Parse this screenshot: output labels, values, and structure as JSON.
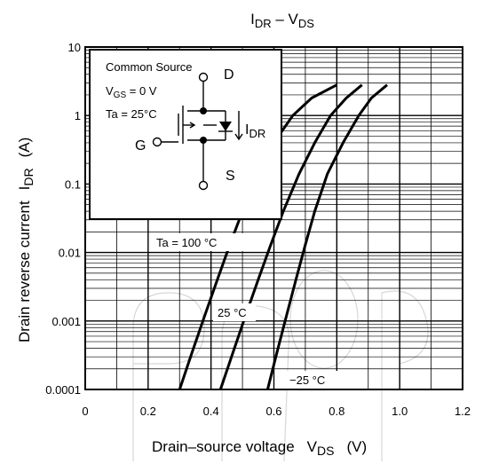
{
  "chart_data": {
    "type": "line",
    "title": {
      "main": "I",
      "main_sub": "DR",
      "sep": " – V",
      "sep_sub": "DS"
    },
    "xlabel": {
      "text": "Drain–source voltage",
      "sym": "V",
      "sym_sub": "DS",
      "unit": "(V)"
    },
    "ylabel": {
      "text": "Drain reverse current",
      "sym": "I",
      "sym_sub": "DR",
      "unit": "(A)"
    },
    "x_scale": "linear",
    "y_scale": "log",
    "xlim": [
      0,
      1.2
    ],
    "ylim": [
      0.0001,
      10
    ],
    "x_ticks": [
      "0",
      "0.2",
      "0.4",
      "0.6",
      "0.8",
      "1.0",
      "1.2"
    ],
    "y_ticks": [
      "0.0001",
      "0.001",
      "0.01",
      "0.1",
      "1",
      "10"
    ],
    "grid": true,
    "series": [
      {
        "name": "Ta = 100 °C",
        "x": [
          0.3,
          0.34,
          0.38,
          0.42,
          0.46,
          0.5,
          0.55,
          0.6,
          0.66,
          0.72,
          0.8
        ],
        "y": [
          0.0001,
          0.00035,
          0.0012,
          0.004,
          0.013,
          0.04,
          0.14,
          0.4,
          1.0,
          1.8,
          2.8
        ]
      },
      {
        "name": "25 °C",
        "x": [
          0.43,
          0.47,
          0.51,
          0.55,
          0.59,
          0.63,
          0.68,
          0.73,
          0.78,
          0.83,
          0.88
        ],
        "y": [
          0.0001,
          0.00035,
          0.0012,
          0.004,
          0.013,
          0.04,
          0.14,
          0.4,
          1.0,
          1.8,
          2.8
        ]
      },
      {
        "name": "−25 °C",
        "x": [
          0.58,
          0.61,
          0.64,
          0.67,
          0.7,
          0.73,
          0.77,
          0.82,
          0.87,
          0.91,
          0.96
        ],
        "y": [
          0.0001,
          0.00035,
          0.0012,
          0.004,
          0.013,
          0.04,
          0.14,
          0.4,
          1.0,
          1.8,
          2.8
        ]
      }
    ],
    "series_labels": [
      "Ta = 100 °C",
      "25 °C",
      "−25 °C"
    ],
    "inset": {
      "title": "Common Source",
      "vgs": {
        "sym": "V",
        "sub": "GS",
        "rest": " = 0 V"
      },
      "ta": "Ta = 25°C",
      "terminals": {
        "drain": "D",
        "gate": "G",
        "source": "S"
      },
      "current": {
        "sym": "I",
        "sub": "DR"
      }
    }
  }
}
